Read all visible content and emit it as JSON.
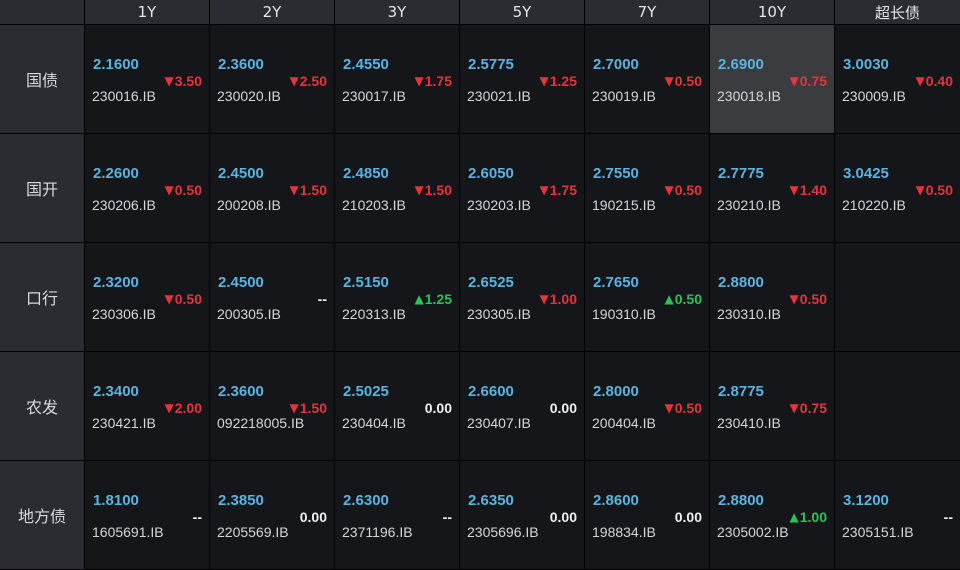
{
  "columns": [
    "1Y",
    "2Y",
    "3Y",
    "5Y",
    "7Y",
    "10Y",
    "超长债"
  ],
  "rows": [
    {
      "label": "国债",
      "cells": [
        {
          "yield": "2.1600",
          "code": "230016.IB",
          "change": "3.50",
          "dir": "down"
        },
        {
          "yield": "2.3600",
          "code": "230020.IB",
          "change": "2.50",
          "dir": "down"
        },
        {
          "yield": "2.4550",
          "code": "230017.IB",
          "change": "1.75",
          "dir": "down"
        },
        {
          "yield": "2.5775",
          "code": "230021.IB",
          "change": "1.25",
          "dir": "down"
        },
        {
          "yield": "2.7000",
          "code": "230019.IB",
          "change": "0.50",
          "dir": "down"
        },
        {
          "yield": "2.6900",
          "code": "230018.IB",
          "change": "0.75",
          "dir": "down",
          "selected": true
        },
        {
          "yield": "3.0030",
          "code": "230009.IB",
          "change": "0.40",
          "dir": "down"
        }
      ]
    },
    {
      "label": "国开",
      "cells": [
        {
          "yield": "2.2600",
          "code": "230206.IB",
          "change": "0.50",
          "dir": "down"
        },
        {
          "yield": "2.4500",
          "code": "200208.IB",
          "change": "1.50",
          "dir": "down"
        },
        {
          "yield": "2.4850",
          "code": "210203.IB",
          "change": "1.50",
          "dir": "down"
        },
        {
          "yield": "2.6050",
          "code": "230203.IB",
          "change": "1.75",
          "dir": "down"
        },
        {
          "yield": "2.7550",
          "code": "190215.IB",
          "change": "0.50",
          "dir": "down"
        },
        {
          "yield": "2.7775",
          "code": "230210.IB",
          "change": "1.40",
          "dir": "down"
        },
        {
          "yield": "3.0425",
          "code": "210220.IB",
          "change": "0.50",
          "dir": "down"
        }
      ]
    },
    {
      "label": "口行",
      "cells": [
        {
          "yield": "2.3200",
          "code": "230306.IB",
          "change": "0.50",
          "dir": "down"
        },
        {
          "yield": "2.4500",
          "code": "200305.IB",
          "change": "--",
          "dir": "flat"
        },
        {
          "yield": "2.5150",
          "code": "220313.IB",
          "change": "1.25",
          "dir": "up"
        },
        {
          "yield": "2.6525",
          "code": "230305.IB",
          "change": "1.00",
          "dir": "down"
        },
        {
          "yield": "2.7650",
          "code": "190310.IB",
          "change": "0.50",
          "dir": "up"
        },
        {
          "yield": "2.8800",
          "code": "230310.IB",
          "change": "0.50",
          "dir": "down"
        },
        null
      ]
    },
    {
      "label": "农发",
      "cells": [
        {
          "yield": "2.3400",
          "code": "230421.IB",
          "change": "2.00",
          "dir": "down"
        },
        {
          "yield": "2.3600",
          "code": "092218005.IB",
          "change": "1.50",
          "dir": "down"
        },
        {
          "yield": "2.5025",
          "code": "230404.IB",
          "change": "0.00",
          "dir": "flat"
        },
        {
          "yield": "2.6600",
          "code": "230407.IB",
          "change": "0.00",
          "dir": "flat"
        },
        {
          "yield": "2.8000",
          "code": "200404.IB",
          "change": "0.50",
          "dir": "down"
        },
        {
          "yield": "2.8775",
          "code": "230410.IB",
          "change": "0.75",
          "dir": "down"
        },
        null
      ]
    },
    {
      "label": "地方债",
      "cells": [
        {
          "yield": "1.8100",
          "code": "1605691.IB",
          "change": "--",
          "dir": "flat"
        },
        {
          "yield": "2.3850",
          "code": "2205569.IB",
          "change": "0.00",
          "dir": "flat"
        },
        {
          "yield": "2.6300",
          "code": "2371196.IB",
          "change": "--",
          "dir": "flat"
        },
        {
          "yield": "2.6350",
          "code": "2305696.IB",
          "change": "0.00",
          "dir": "flat"
        },
        {
          "yield": "2.8600",
          "code": "198834.IB",
          "change": "0.00",
          "dir": "flat"
        },
        {
          "yield": "2.8800",
          "code": "2305002.IB",
          "change": "1.00",
          "dir": "up"
        },
        {
          "yield": "3.1200",
          "code": "2305151.IB",
          "change": "--",
          "dir": "flat"
        }
      ]
    }
  ],
  "colors": {
    "yield": "#5ab4e0",
    "down": "#e8323c",
    "up": "#2bc25a",
    "flat": "#f0f0f0",
    "cell_bg": "#14161a",
    "header_bg": "#2a2c31",
    "selected_bg": "#3b3c40"
  },
  "icons": {
    "down": "down-triangle-icon",
    "up": "up-triangle-icon"
  }
}
